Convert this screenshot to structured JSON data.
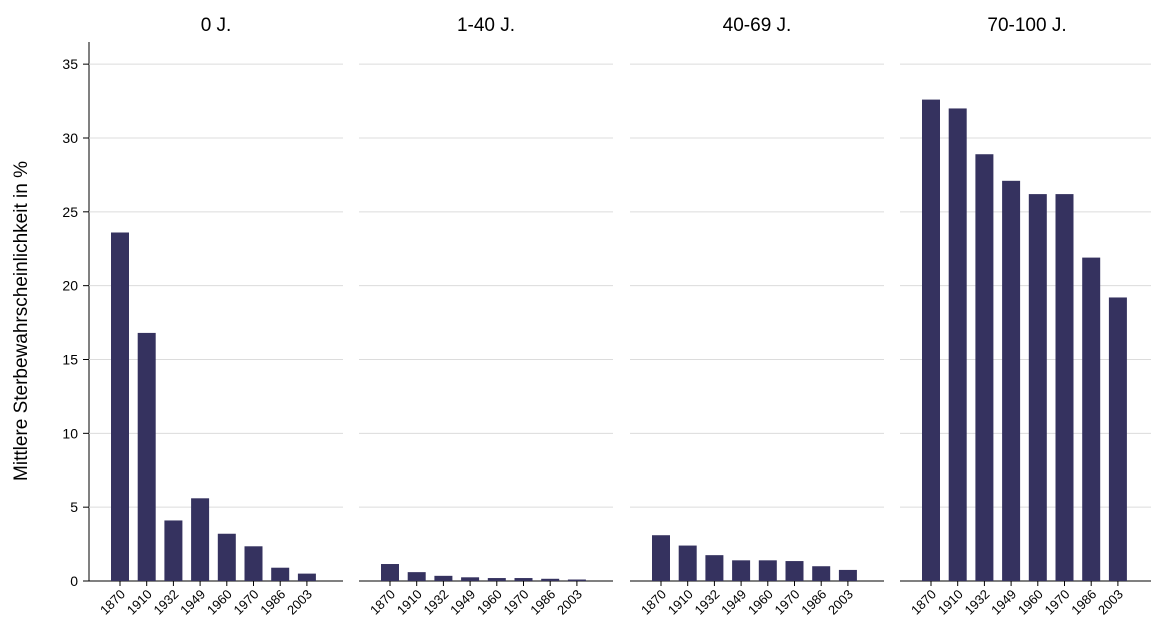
{
  "chart_data": {
    "type": "bar",
    "ylabel": "Mittlere Sterbewahrscheinlichkeit in %",
    "xlabel": "",
    "ylim": [
      0,
      36.5
    ],
    "yticks": [
      0,
      5,
      10,
      15,
      20,
      25,
      30,
      35
    ],
    "grid": true,
    "bar_color": "#35325f",
    "categories": [
      "1870",
      "1910",
      "1932",
      "1949",
      "1960",
      "1970",
      "1986",
      "2003"
    ],
    "panels": [
      {
        "title": "0 J.",
        "values": [
          23.6,
          16.8,
          4.1,
          5.6,
          3.2,
          2.35,
          0.9,
          0.5
        ]
      },
      {
        "title": "1-40 J.",
        "values": [
          1.15,
          0.6,
          0.35,
          0.25,
          0.2,
          0.2,
          0.15,
          0.1
        ]
      },
      {
        "title": "40-69 J.",
        "values": [
          3.1,
          2.4,
          1.75,
          1.4,
          1.4,
          1.35,
          1.0,
          0.75
        ]
      },
      {
        "title": "70-100 J.",
        "values": [
          32.6,
          32.0,
          28.9,
          27.1,
          26.2,
          26.2,
          21.9,
          19.2
        ]
      }
    ]
  }
}
